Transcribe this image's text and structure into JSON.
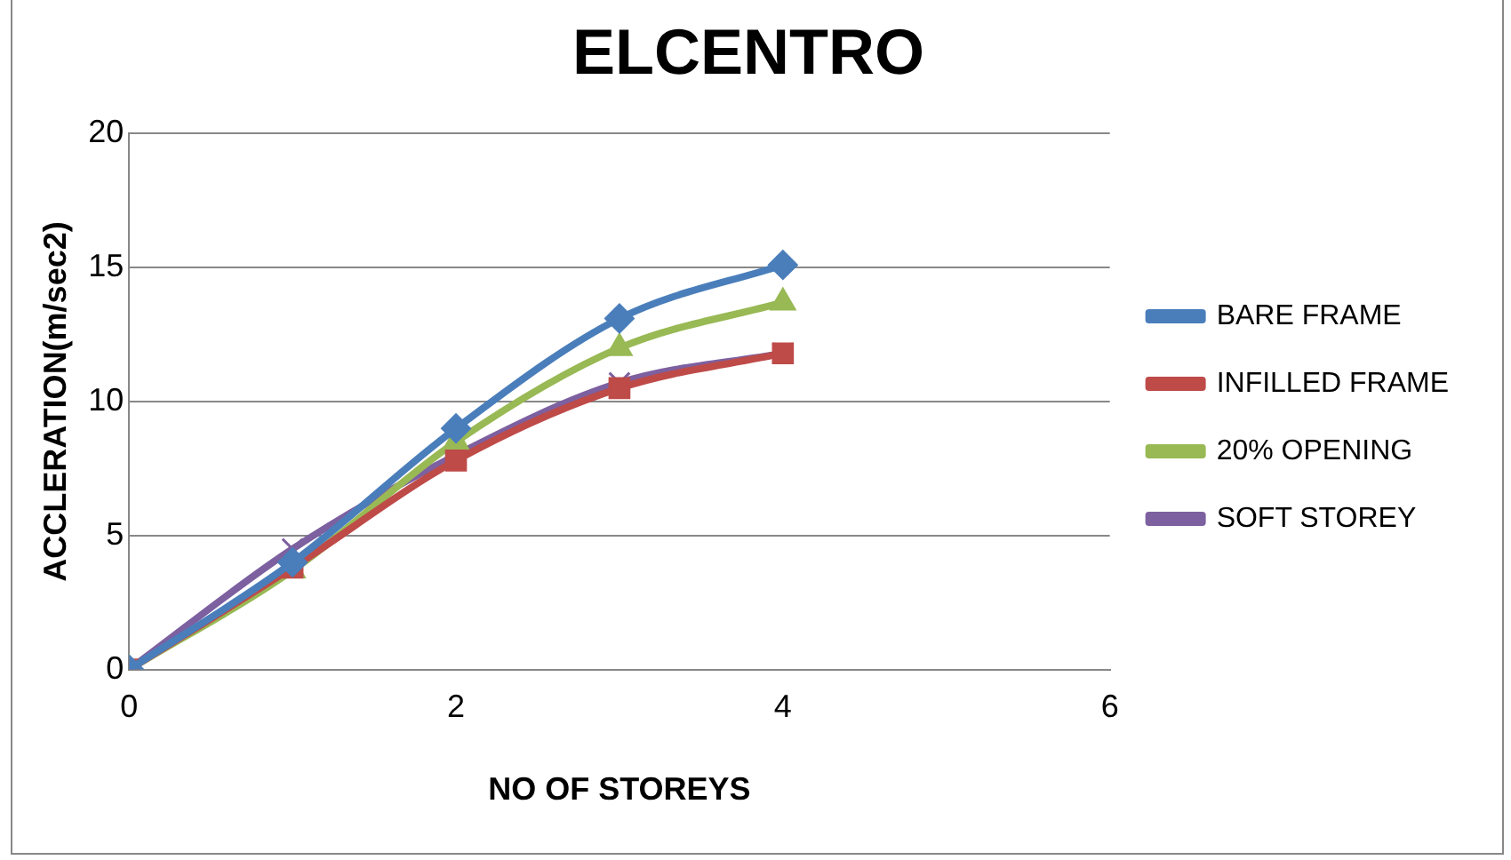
{
  "chart_data": {
    "type": "line",
    "title": "ELCENTRO",
    "xlabel": "NO OF STOREYS",
    "ylabel": "ACCLERATION(m/sec2)",
    "x": [
      0,
      1,
      2,
      3,
      4
    ],
    "series": [
      {
        "name": "BARE FRAME",
        "color": "#4a7ebb",
        "marker": "diamond",
        "values": [
          0,
          4,
          9,
          13.1,
          15.1
        ]
      },
      {
        "name": "INFILLED FRAME",
        "color": "#be4b48",
        "marker": "square",
        "values": [
          0,
          3.8,
          7.8,
          10.5,
          11.8
        ]
      },
      {
        "name": "20% OPENING",
        "color": "#98b954",
        "marker": "triangle",
        "values": [
          0,
          3.7,
          8.5,
          12,
          13.7
        ]
      },
      {
        "name": "SOFT STOREY",
        "color": "#7d60a0",
        "marker": "cross",
        "values": [
          0,
          4.5,
          8,
          10.7,
          11.8
        ]
      }
    ],
    "xlim": [
      0,
      6
    ],
    "xticks": [
      0,
      2,
      4,
      6
    ],
    "ylim": [
      0,
      20
    ],
    "yticks": [
      0,
      5,
      10,
      15,
      20
    ],
    "grid": "y",
    "legend": "right",
    "line_style": "solid"
  }
}
